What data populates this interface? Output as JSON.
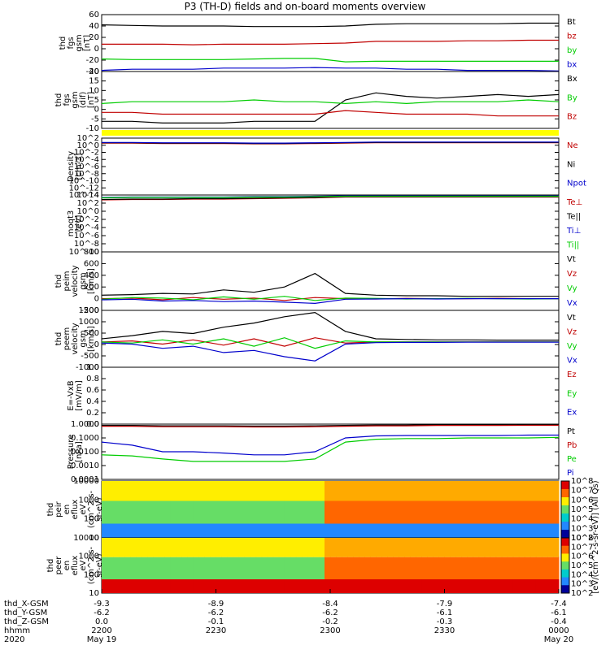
{
  "title": "P3 (TH-D) fields and on-board moments overview",
  "chart_data": [
    {
      "type": "line",
      "ylabel": [
        "thd",
        "fgs",
        "gsm",
        "[nT]"
      ],
      "yticks": [
        "60",
        "40",
        "20",
        "0",
        "-20",
        "-40"
      ],
      "ylim": [
        -40,
        60
      ],
      "series": [
        {
          "name": "Bt",
          "color": "#000000",
          "values": [
            42,
            41,
            40,
            40,
            40,
            39,
            39,
            39,
            40,
            43,
            44,
            44,
            44,
            44,
            45,
            45
          ]
        },
        {
          "name": "bz",
          "color": "#c00000",
          "values": [
            8,
            8,
            8,
            7,
            8,
            8,
            8,
            9,
            10,
            13,
            13,
            13,
            14,
            14,
            15,
            15
          ]
        },
        {
          "name": "by",
          "color": "#00cc00",
          "values": [
            -18,
            -19,
            -19,
            -19,
            -19,
            -18,
            -17,
            -17,
            -23,
            -22,
            -22,
            -22,
            -22,
            -22,
            -22,
            -22
          ]
        },
        {
          "name": "bx",
          "color": "#0000cc",
          "values": [
            -38,
            -36,
            -36,
            -36,
            -34,
            -34,
            -34,
            -33,
            -34,
            -34,
            -36,
            -36,
            -38,
            -38,
            -38,
            -39
          ]
        }
      ]
    },
    {
      "type": "line",
      "ylabel": [
        "thd",
        "fgs",
        "gsm",
        "(dif)",
        "[nT]"
      ],
      "yticks": [
        "20",
        "15",
        "10",
        "5",
        "0",
        "-5",
        "-10"
      ],
      "ylim": [
        -12,
        20
      ],
      "series": [
        {
          "name": "Bx",
          "color": "#000000",
          "values": [
            -8,
            -8,
            -9,
            -9,
            -9,
            -8,
            -8,
            -8,
            4,
            8,
            6,
            5,
            6,
            7,
            6,
            7
          ]
        },
        {
          "name": "By",
          "color": "#00cc00",
          "values": [
            2,
            3,
            3,
            3,
            3,
            4,
            3,
            3,
            2,
            3,
            2,
            3,
            3,
            3,
            4,
            3
          ]
        },
        {
          "name": "Bz",
          "color": "#c00000",
          "values": [
            -3,
            -3,
            -4,
            -4,
            -4,
            -4,
            -4,
            -4,
            -2,
            -3,
            -4,
            -4,
            -4,
            -5,
            -5,
            -5
          ]
        }
      ]
    },
    {
      "type": "line",
      "ylabel": [
        "Density",
        "[cm-3]"
      ],
      "yticks": [
        "10^2",
        "10^0",
        "10^-2",
        "10^-4",
        "10^-6",
        "10^-8",
        "10^-10",
        "10^-12",
        "10^-14"
      ],
      "ylim": [
        -14,
        2
      ],
      "series": [
        {
          "name": "Ne",
          "color": "#c00000",
          "values": [
            0.6,
            0.6,
            0.5,
            0.5,
            0.5,
            0.4,
            0.4,
            0.5,
            0.6,
            0.7,
            0.7,
            0.7,
            0.7,
            0.7,
            0.7,
            0.7
          ]
        },
        {
          "name": "Ni",
          "color": "#000000",
          "values": [
            0.7,
            0.7,
            0.6,
            0.6,
            0.6,
            0.5,
            0.5,
            0.6,
            0.7,
            0.8,
            0.8,
            0.8,
            0.8,
            0.8,
            0.8,
            0.8
          ]
        },
        {
          "name": "Npot",
          "color": "#0000cc",
          "values": [
            0.8,
            0.8,
            0.7,
            0.7,
            0.7,
            0.6,
            0.6,
            0.7,
            0.8,
            0.9,
            0.9,
            0.9,
            0.9,
            0.9,
            0.9,
            0.9
          ]
        }
      ]
    },
    {
      "type": "line",
      "ylabel": [
        "moqt3",
        "[eV]"
      ],
      "yticks": [
        "10^4",
        "10^2",
        "10^0",
        "10^-2",
        "10^-4",
        "10^-6",
        "10^-8",
        "10^-10"
      ],
      "ylim": [
        -10,
        4
      ],
      "series": [
        {
          "name": "Te⊥",
          "color": "#c00000",
          "values": [
            2.8,
            2.9,
            2.9,
            3.0,
            3.0,
            3.1,
            3.2,
            3.3,
            3.5,
            3.5,
            3.5,
            3.5,
            3.5,
            3.5,
            3.5,
            3.5
          ]
        },
        {
          "name": "Te||",
          "color": "#000000",
          "values": [
            2.9,
            3.0,
            3.0,
            3.1,
            3.1,
            3.2,
            3.3,
            3.4,
            3.6,
            3.6,
            3.6,
            3.6,
            3.6,
            3.6,
            3.6,
            3.6
          ]
        },
        {
          "name": "Ti⊥",
          "color": "#0000cc",
          "values": [
            3.4,
            3.5,
            3.5,
            3.5,
            3.5,
            3.6,
            3.6,
            3.7,
            3.8,
            3.8,
            3.8,
            3.8,
            3.8,
            3.8,
            3.8,
            3.8
          ]
        },
        {
          "name": "Ti||",
          "color": "#00cc00",
          "values": [
            3.3,
            3.4,
            3.4,
            3.4,
            3.4,
            3.5,
            3.5,
            3.6,
            3.7,
            3.7,
            3.7,
            3.7,
            3.7,
            3.7,
            3.7,
            3.7
          ]
        }
      ]
    },
    {
      "type": "line",
      "ylabel": [
        "thd",
        "peim",
        "velocity",
        "gsm",
        "[km/s]"
      ],
      "yticks": [
        "800",
        "600",
        "400",
        "200",
        "0",
        "-200"
      ],
      "ylim": [
        -200,
        800
      ],
      "series": [
        {
          "name": "Vt",
          "color": "#000000",
          "values": [
            60,
            70,
            90,
            80,
            150,
            110,
            200,
            430,
            90,
            60,
            50,
            50,
            40,
            40,
            40,
            40
          ]
        },
        {
          "name": "Vz",
          "color": "#c00000",
          "values": [
            0,
            10,
            -20,
            20,
            -10,
            10,
            -30,
            20,
            0,
            -5,
            5,
            0,
            0,
            5,
            0,
            0
          ]
        },
        {
          "name": "Vy",
          "color": "#00cc00",
          "values": [
            -10,
            20,
            10,
            -20,
            30,
            -10,
            40,
            -30,
            10,
            5,
            -5,
            0,
            5,
            0,
            -5,
            0
          ]
        },
        {
          "name": "Vx",
          "color": "#0000cc",
          "values": [
            -20,
            -10,
            -40,
            -30,
            -50,
            -40,
            -60,
            -80,
            -10,
            -5,
            0,
            -5,
            0,
            0,
            0,
            0
          ]
        }
      ]
    },
    {
      "type": "line",
      "ylabel": [
        "thd",
        "peem",
        "velocity",
        "gsm",
        "[km/s]"
      ],
      "yticks": [
        "1500",
        "1000",
        "500",
        "0",
        "-500",
        "-1000"
      ],
      "ylim": [
        -1200,
        1500
      ],
      "series": [
        {
          "name": "Vt",
          "color": "#000000",
          "values": [
            150,
            300,
            500,
            400,
            700,
            900,
            1200,
            1400,
            500,
            150,
            120,
            100,
            100,
            90,
            90,
            90
          ]
        },
        {
          "name": "Vz",
          "color": "#c00000",
          "values": [
            0,
            50,
            -100,
            100,
            -150,
            150,
            -200,
            200,
            -50,
            0,
            0,
            0,
            0,
            0,
            0,
            0
          ]
        },
        {
          "name": "Vy",
          "color": "#00cc00",
          "values": [
            0,
            -50,
            100,
            -100,
            150,
            -200,
            200,
            -300,
            50,
            0,
            0,
            0,
            0,
            0,
            0,
            0
          ]
        },
        {
          "name": "Vx",
          "color": "#0000cc",
          "values": [
            -50,
            -100,
            -300,
            -200,
            -500,
            -400,
            -700,
            -900,
            -100,
            -30,
            -20,
            -20,
            -10,
            -10,
            -10,
            -10
          ]
        }
      ]
    },
    {
      "type": "line",
      "ylabel": [
        "E=-VxB",
        "[mV/m]"
      ],
      "yticks": [
        "1.0",
        "0.8",
        "0.6",
        "0.4",
        "0.2",
        "0.0"
      ],
      "ylim": [
        0,
        1
      ],
      "series": [
        {
          "name": "Ez",
          "color": "#c00000",
          "values": []
        },
        {
          "name": "Ey",
          "color": "#00cc00",
          "values": []
        },
        {
          "name": "Ex",
          "color": "#0000cc",
          "values": []
        }
      ]
    },
    {
      "type": "line",
      "log": true,
      "ylabel": [
        "Pressure",
        "[nPa]"
      ],
      "yticks": [
        "1.0000",
        "0.1000",
        "0.0100",
        "0.0010",
        "0.0001"
      ],
      "ylim": [
        0.0001,
        1
      ],
      "series": [
        {
          "name": "Pt",
          "color": "#000000",
          "values": [
            0.8,
            0.8,
            0.75,
            0.75,
            0.75,
            0.72,
            0.72,
            0.75,
            0.8,
            0.85,
            0.85,
            0.9,
            0.9,
            0.9,
            0.92,
            0.92
          ]
        },
        {
          "name": "Pb",
          "color": "#c00000",
          "values": [
            0.7,
            0.7,
            0.65,
            0.65,
            0.65,
            0.62,
            0.62,
            0.65,
            0.7,
            0.75,
            0.75,
            0.8,
            0.8,
            0.8,
            0.82,
            0.82
          ]
        },
        {
          "name": "Pe",
          "color": "#00cc00",
          "values": [
            0.006,
            0.005,
            0.003,
            0.002,
            0.002,
            0.002,
            0.002,
            0.003,
            0.05,
            0.08,
            0.09,
            0.09,
            0.1,
            0.1,
            0.1,
            0.11
          ]
        },
        {
          "name": "Pi",
          "color": "#0000cc",
          "values": [
            0.05,
            0.03,
            0.01,
            0.01,
            0.008,
            0.006,
            0.006,
            0.01,
            0.1,
            0.14,
            0.15,
            0.15,
            0.15,
            0.15,
            0.16,
            0.16
          ]
        }
      ]
    },
    {
      "type": "heatmap",
      "ylabel": [
        "thd",
        "peir",
        "en",
        "eflux",
        "eV",
        "(cm^2-s-",
        "sr-eV)"
      ],
      "yticks": [
        "10000",
        "1000",
        "100",
        "10"
      ],
      "colorbar_label": "[eV/(cm^2-s-sr-eV)] (All Qs)",
      "colorbar_ticks": [
        "10^8",
        "10^7",
        "10^6",
        "10^5",
        "10^4",
        "10^3",
        "10^2"
      ]
    },
    {
      "type": "heatmap",
      "ylabel": [
        "thd",
        "peer",
        "en",
        "eflux",
        "eV",
        "(cm^2-s-",
        "sr-eV)"
      ],
      "yticks": [
        "10000",
        "1000",
        "100",
        "10"
      ],
      "colorbar_label": "[eV/(cm^2-s-sr-eV)] (All Qs)",
      "colorbar_ticks": [
        "10^8",
        "10^7",
        "10^6",
        "10^5",
        "10^4",
        "10^3",
        "10^2"
      ]
    }
  ],
  "xaxis": {
    "rows": [
      {
        "label": "thd_X-GSM",
        "values": [
          "-9.3",
          "-8.9",
          "-8.4",
          "-7.9",
          "-7.4"
        ]
      },
      {
        "label": "thd_Y-GSM",
        "values": [
          "-6.2",
          "-6.2",
          "-6.2",
          "-6.1",
          "-6.1"
        ]
      },
      {
        "label": "thd_Z-GSM",
        "values": [
          "0.0",
          "-0.1",
          "-0.2",
          "-0.3",
          "-0.4"
        ]
      },
      {
        "label": "hhmm",
        "values": [
          "2200",
          "2230",
          "2300",
          "2330",
          "0000"
        ]
      }
    ],
    "year": "2020",
    "date_start": "May 19",
    "date_end": "May 20"
  }
}
